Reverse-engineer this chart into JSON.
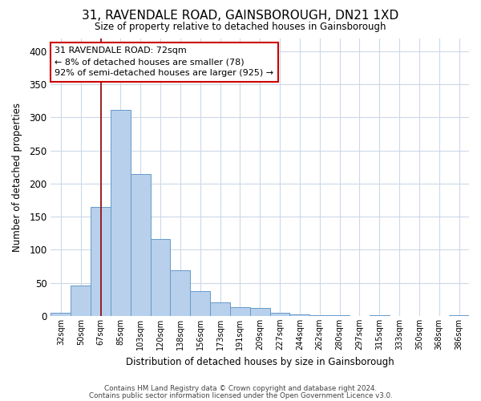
{
  "title": "31, RAVENDALE ROAD, GAINSBOROUGH, DN21 1XD",
  "subtitle": "Size of property relative to detached houses in Gainsborough",
  "xlabel": "Distribution of detached houses by size in Gainsborough",
  "ylabel": "Number of detached properties",
  "bar_labels": [
    "32sqm",
    "50sqm",
    "67sqm",
    "85sqm",
    "103sqm",
    "120sqm",
    "138sqm",
    "156sqm",
    "173sqm",
    "191sqm",
    "209sqm",
    "227sqm",
    "244sqm",
    "262sqm",
    "280sqm",
    "297sqm",
    "315sqm",
    "333sqm",
    "350sqm",
    "368sqm",
    "386sqm"
  ],
  "bar_values": [
    5,
    46,
    165,
    312,
    215,
    116,
    69,
    38,
    20,
    13,
    12,
    5,
    2,
    1,
    1,
    0,
    1,
    0,
    0,
    0,
    1
  ],
  "bar_color": "#b8d0eb",
  "bar_edge_color": "#6699cc",
  "vline_x": 2,
  "vline_color": "#8b0000",
  "ylim": [
    0,
    420
  ],
  "yticks": [
    0,
    50,
    100,
    150,
    200,
    250,
    300,
    350,
    400
  ],
  "annotation_title": "31 RAVENDALE ROAD: 72sqm",
  "annotation_line1": "← 8% of detached houses are smaller (78)",
  "annotation_line2": "92% of semi-detached houses are larger (925) →",
  "annotation_box_color": "#ffffff",
  "annotation_box_edge": "#cc0000",
  "footer1": "Contains HM Land Registry data © Crown copyright and database right 2024.",
  "footer2": "Contains public sector information licensed under the Open Government Licence v3.0.",
  "background_color": "#ffffff",
  "grid_color": "#ccd9e8",
  "figsize": [
    6.0,
    5.0
  ],
  "dpi": 100
}
